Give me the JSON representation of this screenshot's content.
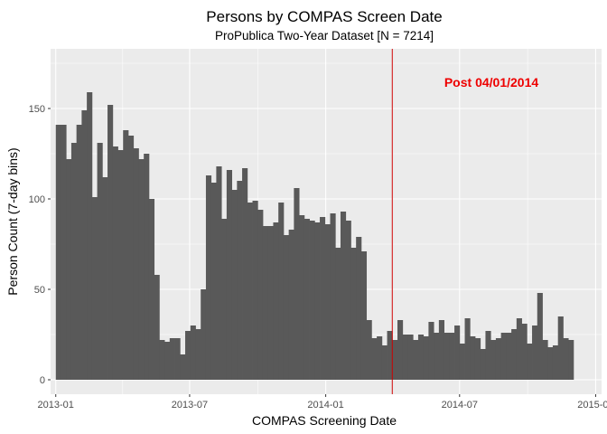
{
  "chart_data": {
    "type": "bar",
    "title": "Persons by COMPAS Screen Date",
    "subtitle": "ProPublica Two-Year Dataset  [N = 7214]",
    "xlabel": "COMPAS Screening Date",
    "ylabel": "Person Count (7-day bins)",
    "x_range": [
      "2012-12-25",
      "2015-01-09"
    ],
    "ylim": [
      -8,
      183
    ],
    "x_ticks": [
      "2013-01",
      "2013-07",
      "2014-01",
      "2014-07",
      "2015-01"
    ],
    "x_tick_dates": [
      "2013-01-01",
      "2013-07-01",
      "2014-01-01",
      "2014-07-01",
      "2015-01-01"
    ],
    "y_ticks": [
      0,
      50,
      100,
      150
    ],
    "bin_start": "2013-01-01",
    "bin_width_days": 7,
    "values": [
      141,
      141,
      122,
      131,
      141,
      149,
      159,
      101,
      131,
      112,
      152,
      129,
      127,
      138,
      135,
      128,
      122,
      125,
      100,
      58,
      22,
      21,
      23,
      23,
      14,
      27,
      30,
      28,
      50,
      113,
      109,
      118,
      89,
      116,
      105,
      110,
      117,
      98,
      99,
      94,
      85,
      85,
      87,
      98,
      80,
      83,
      106,
      91,
      89,
      88,
      87,
      90,
      86,
      92,
      73,
      93,
      88,
      73,
      79,
      71,
      33,
      23,
      24,
      19,
      27,
      22,
      33,
      25,
      25,
      22,
      25,
      24,
      32,
      26,
      33,
      26,
      26,
      30,
      20,
      34,
      24,
      23,
      17,
      27,
      22,
      23,
      26,
      26,
      28,
      34,
      31,
      20,
      30,
      48,
      22,
      18,
      19,
      35,
      23,
      22
    ],
    "reference_line": {
      "date": "2014-04-01",
      "color": "#cc0000"
    },
    "annotation": {
      "text": "Post 04/01/2014",
      "color": "#ee0000"
    },
    "colors": {
      "panel": "#ebebeb",
      "grid": "#ffffff",
      "bar": "#595959"
    },
    "grid": true
  }
}
